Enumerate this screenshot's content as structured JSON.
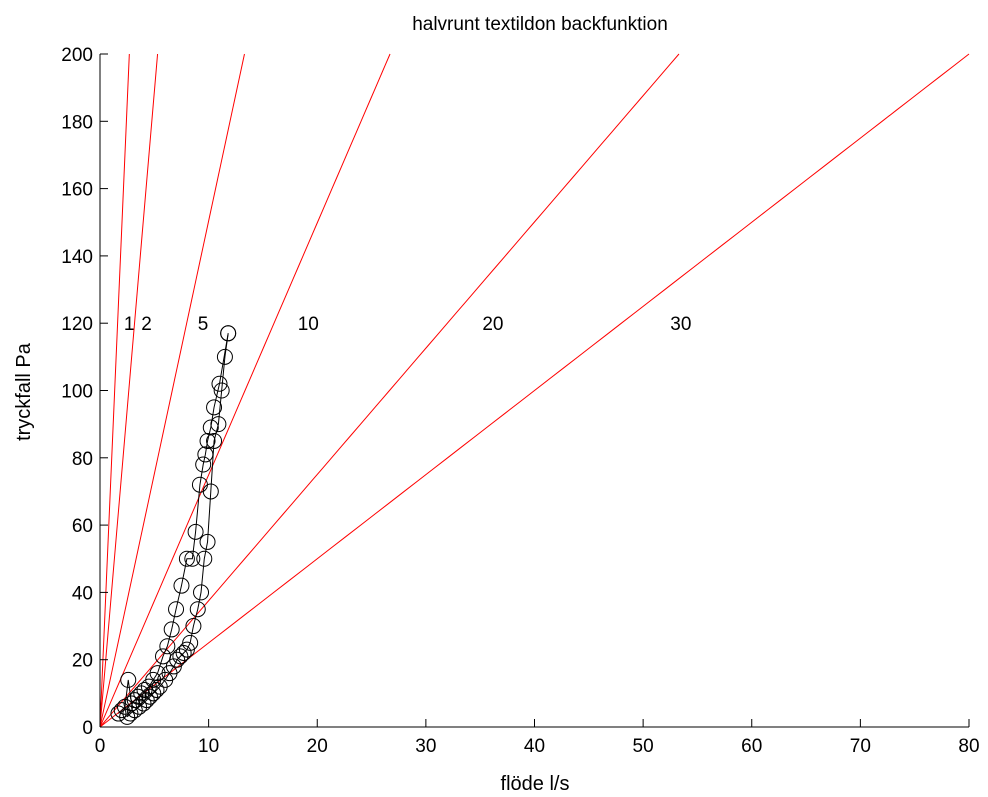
{
  "chart_data": {
    "type": "line",
    "title": "halvrunt textildon  backfunktion",
    "xlabel": "flöde l/s",
    "ylabel": "tryckfall Pa",
    "xlim": [
      0,
      80
    ],
    "ylim": [
      0,
      200
    ],
    "xticks": [
      "0",
      "10",
      "20",
      "30",
      "40",
      "50",
      "60",
      "70",
      "80"
    ],
    "yticks": [
      "0",
      "20",
      "40",
      "60",
      "80",
      "100",
      "120",
      "140",
      "160",
      "180",
      "200"
    ],
    "grid": false,
    "colors": {
      "reference": "#ff0000",
      "measured": "#000000"
    },
    "reference_curves": [
      {
        "label": "1",
        "x_at_ymax": 2.7,
        "label_x": 2.2,
        "label_y": 120
      },
      {
        "label": "2",
        "x_at_ymax": 5.3,
        "label_x": 3.8,
        "label_y": 120
      },
      {
        "label": "5",
        "x_at_ymax": 13.3,
        "label_x": 9.0,
        "label_y": 120
      },
      {
        "label": "10",
        "x_at_ymax": 26.7,
        "label_x": 18.2,
        "label_y": 120
      },
      {
        "label": "20",
        "x_at_ymax": 53.3,
        "label_x": 35.2,
        "label_y": 120
      },
      {
        "label": "30",
        "x_at_ymax": 80.0,
        "label_x": 52.5,
        "label_y": 120
      }
    ],
    "series": [
      {
        "marker": "circle",
        "x": [
          2.5,
          2.8,
          3.2,
          3.6,
          4.0,
          4.3,
          4.6,
          4.9,
          5.2,
          5.5,
          6.0,
          6.4,
          6.8,
          7.1,
          7.4,
          7.7,
          8.0,
          8.3,
          8.6,
          9.0,
          9.3,
          9.6,
          9.9,
          10.2,
          10.5,
          10.9,
          11.2,
          11.5,
          11.8
        ],
        "y": [
          3,
          4,
          5,
          6,
          7,
          8,
          9,
          10,
          11,
          12,
          14,
          16,
          18,
          20,
          21,
          22,
          23,
          25,
          30,
          35,
          40,
          50,
          55,
          70,
          85,
          90,
          100,
          110,
          117
        ]
      },
      {
        "marker": "circle",
        "x": [
          11.8,
          11.0,
          10.5,
          10.2,
          9.9,
          9.7,
          9.5,
          9.2,
          8.8,
          8.5,
          8.0,
          7.5,
          7.0,
          6.6,
          6.2,
          5.8,
          5.3,
          4.9,
          4.5,
          4.1,
          3.8,
          3.5,
          3.2,
          2.9,
          2.6,
          2.3,
          2.0,
          1.7
        ],
        "y": [
          117,
          102,
          95,
          89,
          85,
          81,
          78,
          72,
          58,
          50,
          50,
          42,
          35,
          29,
          24,
          21,
          16,
          14,
          12,
          11,
          10,
          9,
          8,
          7,
          14,
          6,
          5,
          4
        ]
      }
    ]
  }
}
